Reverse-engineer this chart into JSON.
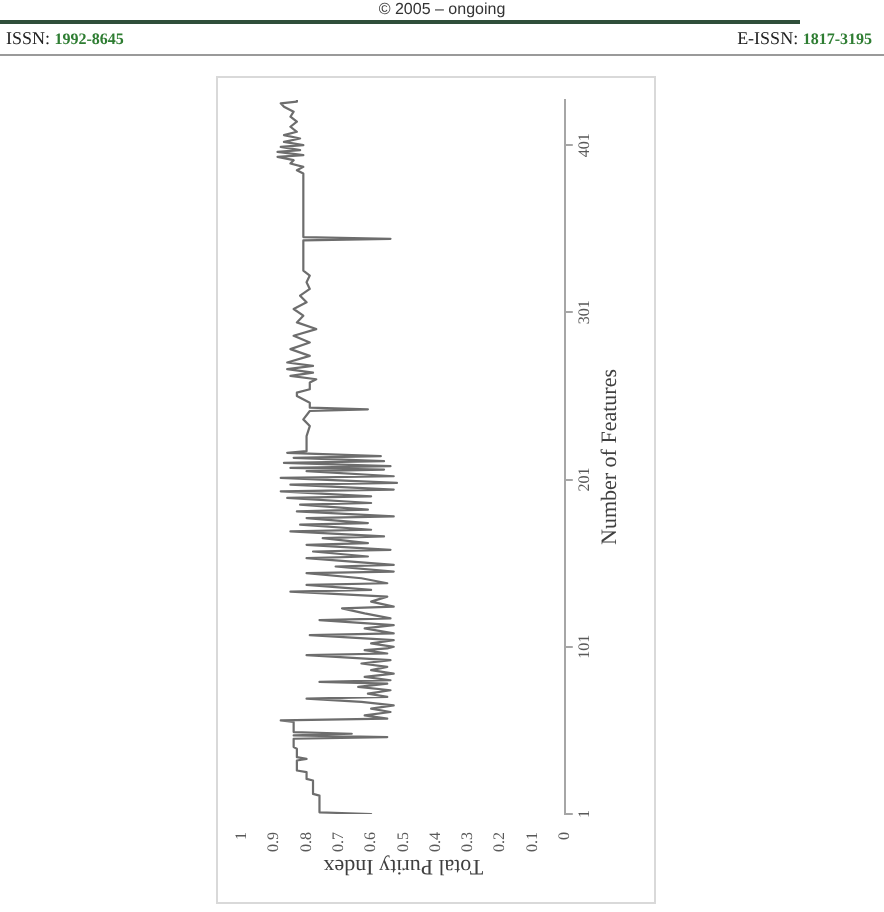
{
  "chart_data": {
    "type": "line",
    "orientation": "horizontal",
    "xlabel": "Total Purity Index",
    "ylabel": "Number of Features",
    "annotations": [
      "© 2005 – ongoing",
      "ISSN: 1992-8645",
      "E-ISSN: 1817-3195"
    ],
    "color": "#6d6d6d",
    "x": [
      1,
      2,
      3,
      4,
      12,
      13,
      21,
      22,
      26,
      27,
      33,
      34,
      35,
      40,
      41,
      46,
      47,
      48,
      49,
      50,
      56,
      57,
      58,
      60,
      62,
      64,
      66,
      68,
      70,
      71,
      73,
      75,
      77,
      79,
      80,
      81,
      83,
      85,
      87,
      89,
      91,
      93,
      96,
      97,
      99,
      100,
      101,
      103,
      105,
      108,
      109,
      112,
      114,
      117,
      118,
      121,
      124,
      125,
      128,
      131,
      134,
      135,
      138,
      139,
      142,
      145,
      146,
      149,
      150,
      154,
      155,
      158,
      159,
      162,
      163,
      166,
      167,
      170,
      171,
      174,
      175,
      178,
      179,
      182,
      183,
      186,
      187,
      190,
      191,
      194,
      195,
      198,
      199,
      202,
      203,
      206,
      207,
      208,
      209,
      211,
      212,
      214,
      215,
      217,
      218,
      227,
      233,
      237,
      242,
      243,
      244,
      247,
      251,
      253,
      255,
      259,
      261,
      263,
      265,
      267,
      269,
      271,
      275,
      279,
      283,
      287,
      291,
      295,
      299,
      303,
      307,
      311,
      315,
      319,
      323,
      326,
      344,
      345,
      346,
      384,
      386,
      388,
      390,
      392,
      394,
      395,
      397,
      398,
      400,
      401,
      403,
      405,
      407,
      409,
      412,
      415,
      418,
      421,
      424,
      426,
      427,
      428
    ],
    "values": [
      0.6,
      0.76,
      0.76,
      0.76,
      0.76,
      0.78,
      0.78,
      0.8,
      0.8,
      0.83,
      0.83,
      0.8,
      0.83,
      0.83,
      0.84,
      0.84,
      0.55,
      0.84,
      0.66,
      0.84,
      0.84,
      0.88,
      0.55,
      0.62,
      0.54,
      0.6,
      0.53,
      0.63,
      0.8,
      0.55,
      0.61,
      0.54,
      0.64,
      0.55,
      0.76,
      0.54,
      0.62,
      0.53,
      0.6,
      0.55,
      0.63,
      0.54,
      0.8,
      0.55,
      0.62,
      0.55,
      0.53,
      0.6,
      0.53,
      0.79,
      0.53,
      0.62,
      0.53,
      0.76,
      0.54,
      0.62,
      0.69,
      0.53,
      0.6,
      0.55,
      0.85,
      0.6,
      0.8,
      0.55,
      0.63,
      0.8,
      0.53,
      0.71,
      0.53,
      0.8,
      0.61,
      0.78,
      0.54,
      0.8,
      0.61,
      0.75,
      0.56,
      0.85,
      0.6,
      0.82,
      0.61,
      0.8,
      0.53,
      0.83,
      0.61,
      0.82,
      0.6,
      0.86,
      0.6,
      0.88,
      0.53,
      0.85,
      0.52,
      0.88,
      0.53,
      0.8,
      0.56,
      0.85,
      0.54,
      0.87,
      0.56,
      0.84,
      0.57,
      0.86,
      0.8,
      0.8,
      0.79,
      0.81,
      0.79,
      0.61,
      0.79,
      0.79,
      0.83,
      0.83,
      0.79,
      0.79,
      0.77,
      0.85,
      0.78,
      0.86,
      0.78,
      0.86,
      0.79,
      0.85,
      0.79,
      0.84,
      0.77,
      0.83,
      0.81,
      0.84,
      0.8,
      0.82,
      0.79,
      0.8,
      0.79,
      0.81,
      0.81,
      0.54,
      0.81,
      0.81,
      0.83,
      0.81,
      0.85,
      0.84,
      0.89,
      0.81,
      0.89,
      0.82,
      0.88,
      0.81,
      0.87,
      0.82,
      0.87,
      0.83,
      0.85,
      0.83,
      0.85,
      0.84,
      0.87,
      0.88,
      0.83,
      0.83
    ],
    "xlim": [
      1,
      0
    ],
    "xticks": [
      0,
      0.1,
      0.2,
      0.3,
      0.4,
      0.5,
      0.6,
      0.7,
      0.8,
      0.9,
      1
    ],
    "ylim": [
      1,
      428
    ],
    "yticks": [
      1,
      101,
      201,
      301,
      401
    ]
  }
}
